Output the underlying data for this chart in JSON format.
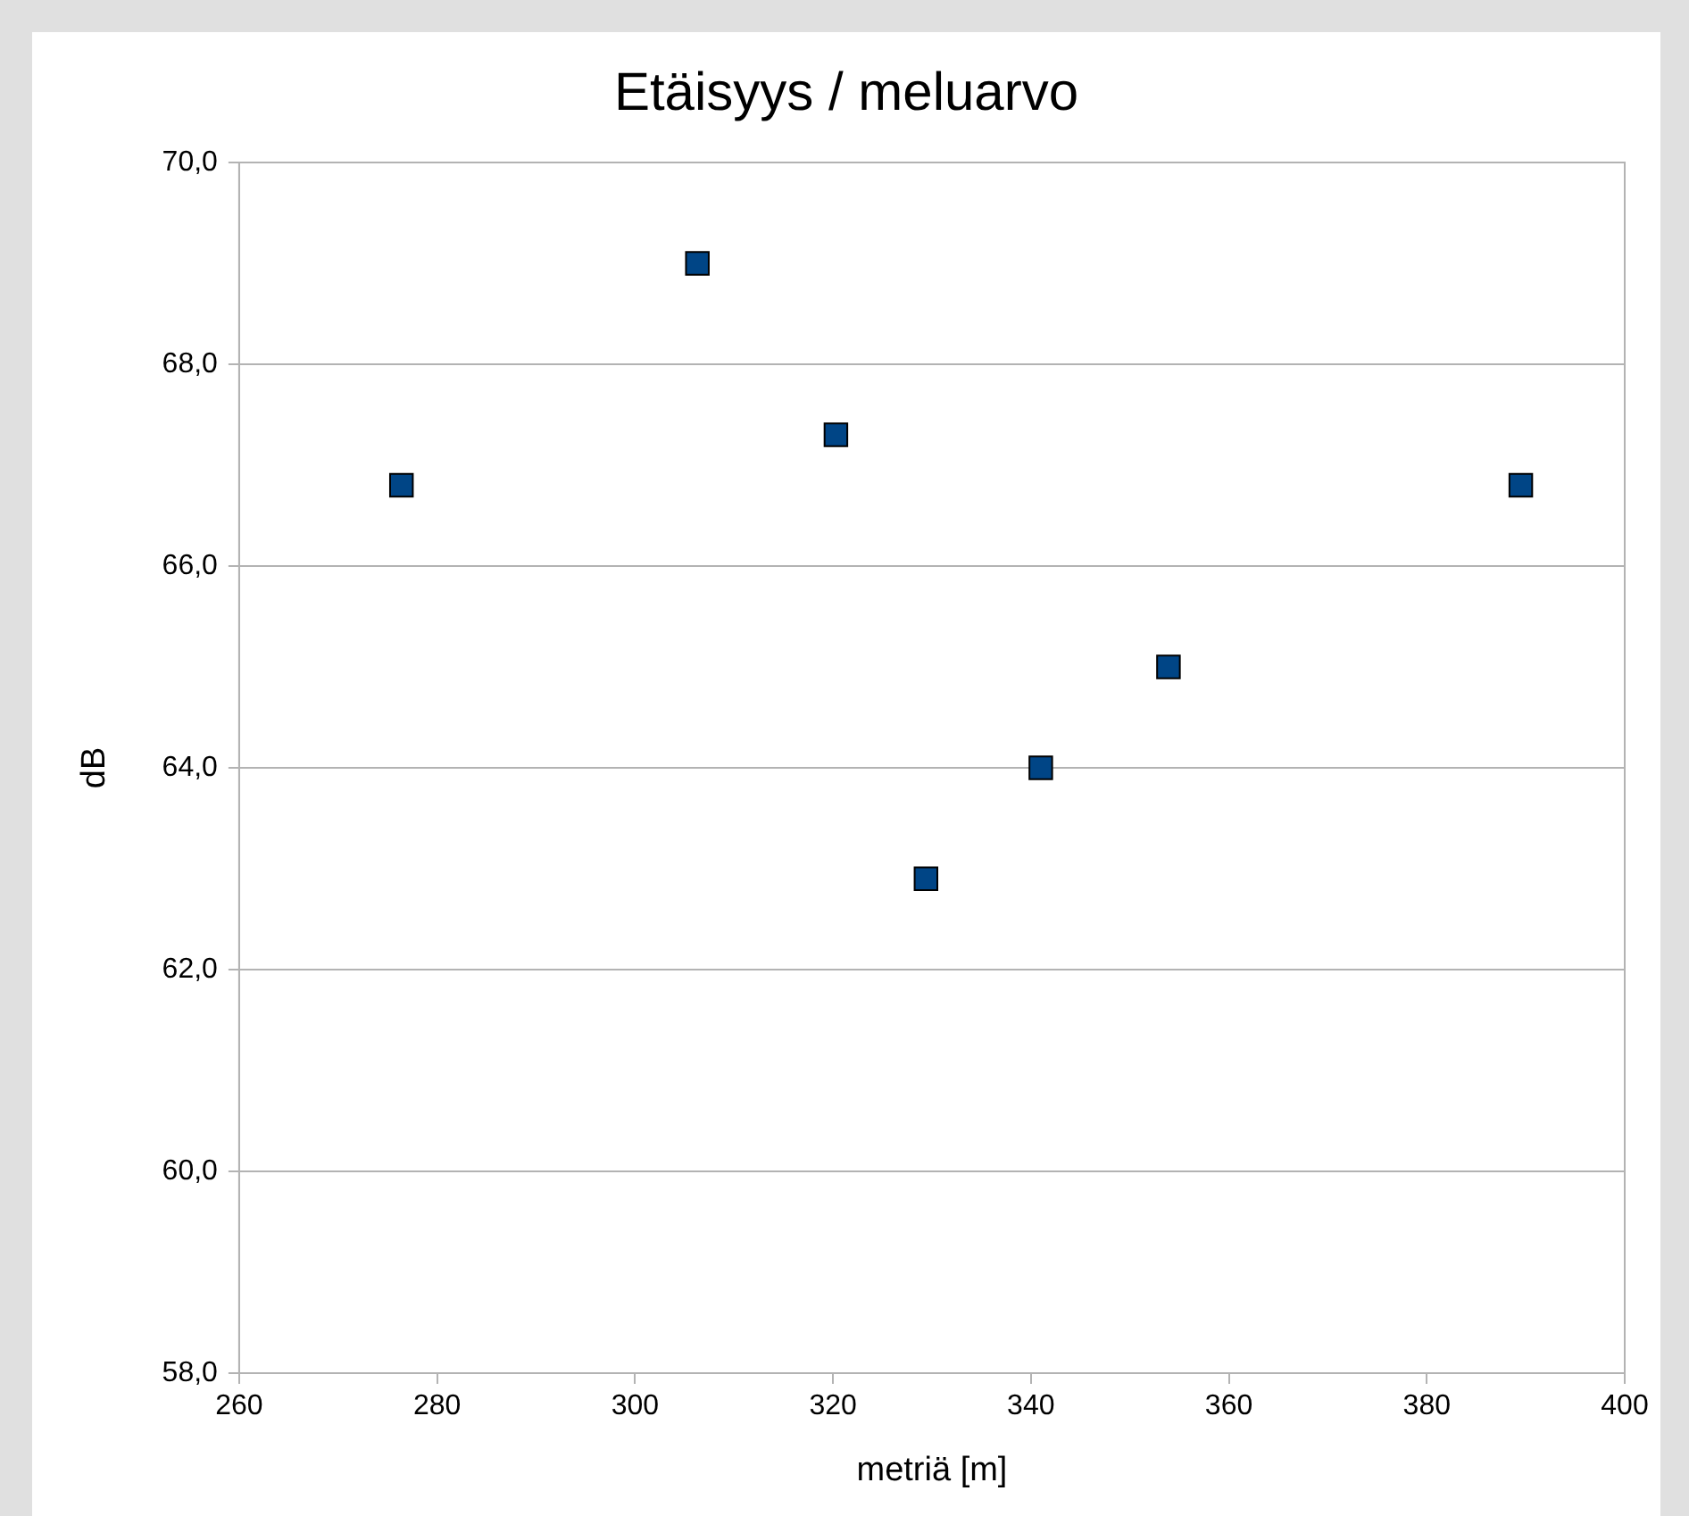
{
  "chart_data": {
    "type": "scatter",
    "title": "Etäisyys / meluarvo",
    "xlabel": "metriä [m]",
    "ylabel": "dB",
    "x": [
      276.4,
      306.3,
      320.3,
      329.4,
      341.0,
      353.9,
      389.5
    ],
    "values": [
      66.8,
      69.0,
      67.3,
      62.9,
      64.0,
      65.0,
      66.8
    ],
    "color": "#004586",
    "marker": "square",
    "xlim": [
      260,
      400
    ],
    "xticks": [
      260,
      280,
      300,
      320,
      340,
      360,
      380,
      400
    ],
    "ylim": [
      58,
      70
    ],
    "yticks": [
      {
        "value": 58,
        "label": "58,0"
      },
      {
        "value": 60,
        "label": "60,0"
      },
      {
        "value": 62,
        "label": "62,0"
      },
      {
        "value": 64,
        "label": "64,0"
      },
      {
        "value": 66,
        "label": "66,0"
      },
      {
        "value": 68,
        "label": "68,0"
      },
      {
        "value": 70,
        "label": "70,0"
      }
    ],
    "grid": "y",
    "legend": false
  }
}
